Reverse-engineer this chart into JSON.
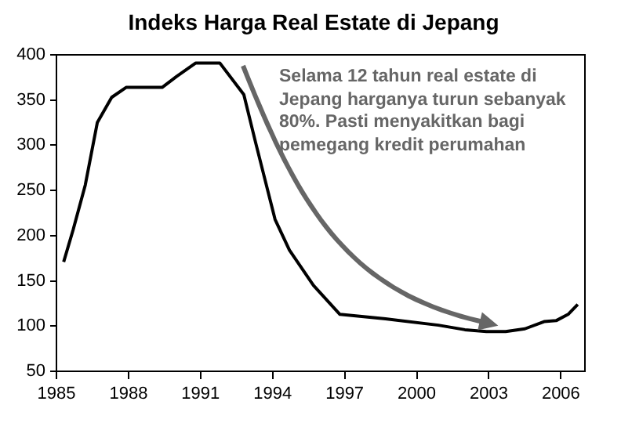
{
  "chart_data": {
    "type": "line",
    "title": "Indeks Harga Real Estate di Jepang",
    "x": [
      1985.3,
      1985.7,
      1986.2,
      1986.7,
      1987.3,
      1987.9,
      1989.4,
      1990.0,
      1990.8,
      1991.8,
      1992.8,
      1993.3,
      1994.1,
      1994.7,
      1995.7,
      1996.8,
      1998.7,
      2000.9,
      2002.0,
      2002.9,
      2003.7,
      2004.5,
      2005.3,
      2005.8,
      2006.3,
      2006.7
    ],
    "series": [
      {
        "color": "#000000",
        "values": [
          171,
          207,
          256,
          325,
          353,
          364,
          364,
          376,
          391,
          391,
          356,
          302,
          218,
          184,
          145,
          113,
          108,
          101,
          96,
          94,
          94,
          97,
          105,
          106,
          113,
          124
        ]
      }
    ],
    "xlim": [
      1985,
      2007
    ],
    "xticks": [
      1985,
      1988,
      1991,
      1994,
      1997,
      2000,
      2003,
      2006
    ],
    "ylim": [
      50,
      400
    ],
    "yticks": [
      50,
      100,
      150,
      200,
      250,
      300,
      350,
      400
    ],
    "grid": false,
    "legend": false,
    "marker": "none",
    "line_style": "solid",
    "annotations": [
      "Selama 12 tahun real estate di Jepang harganya turun sebanyak 80%. Pasti menyakitkan bagi pemegang kredit perumahan"
    ]
  }
}
